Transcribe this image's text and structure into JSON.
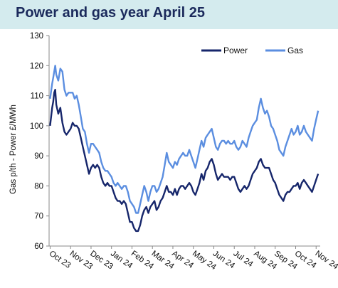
{
  "header": {
    "title": "Power and gas year April 25",
    "background_color": "#d4ebee",
    "title_color": "#1b2a5c"
  },
  "chart_data": {
    "type": "line",
    "title": "Power and gas year April 25",
    "xlabel": "",
    "ylabel": "Gas p/th - Power £/MWh",
    "ylim": [
      60,
      130
    ],
    "yticks": [
      60,
      70,
      80,
      90,
      100,
      110,
      120,
      130
    ],
    "x_tick_labels": [
      "Oct 23",
      "Nov 23",
      "Dec 23",
      "Jan 24",
      "Feb 24",
      "Mar 24",
      "Apr 24",
      "May 24",
      "Jun 24",
      "Jul 24",
      "Aug 24",
      "Sep 24",
      "Oct 24",
      "Nov 24"
    ],
    "grid": false,
    "legend_position": "top-right",
    "series": [
      {
        "name": "Power",
        "color": "#16266b",
        "values": [
          [
            0.0,
            100
          ],
          [
            0.1,
            106
          ],
          [
            0.15,
            108
          ],
          [
            0.2,
            111
          ],
          [
            0.25,
            112
          ],
          [
            0.3,
            107
          ],
          [
            0.4,
            104
          ],
          [
            0.5,
            106
          ],
          [
            0.6,
            101
          ],
          [
            0.7,
            98
          ],
          [
            0.8,
            97
          ],
          [
            0.9,
            98
          ],
          [
            1.0,
            99
          ],
          [
            1.1,
            101
          ],
          [
            1.2,
            100
          ],
          [
            1.3,
            100
          ],
          [
            1.4,
            99
          ],
          [
            1.5,
            96
          ],
          [
            1.6,
            93
          ],
          [
            1.7,
            90
          ],
          [
            1.8,
            87
          ],
          [
            1.9,
            84
          ],
          [
            2.0,
            86
          ],
          [
            2.1,
            87
          ],
          [
            2.2,
            86
          ],
          [
            2.3,
            87
          ],
          [
            2.4,
            86
          ],
          [
            2.5,
            83
          ],
          [
            2.6,
            81
          ],
          [
            2.7,
            80
          ],
          [
            2.8,
            81
          ],
          [
            2.9,
            80
          ],
          [
            3.0,
            80
          ],
          [
            3.1,
            78
          ],
          [
            3.2,
            76
          ],
          [
            3.3,
            75
          ],
          [
            3.4,
            75
          ],
          [
            3.5,
            74
          ],
          [
            3.6,
            75
          ],
          [
            3.7,
            74
          ],
          [
            3.8,
            71
          ],
          [
            3.9,
            68
          ],
          [
            4.0,
            68
          ],
          [
            4.1,
            66
          ],
          [
            4.2,
            65
          ],
          [
            4.3,
            65
          ],
          [
            4.4,
            67
          ],
          [
            4.5,
            70
          ],
          [
            4.6,
            72
          ],
          [
            4.7,
            73
          ],
          [
            4.8,
            71
          ],
          [
            4.9,
            73
          ],
          [
            5.0,
            74
          ],
          [
            5.1,
            75
          ],
          [
            5.2,
            72
          ],
          [
            5.3,
            73
          ],
          [
            5.4,
            75
          ],
          [
            5.5,
            76
          ],
          [
            5.6,
            78
          ],
          [
            5.7,
            80
          ],
          [
            5.8,
            78
          ],
          [
            5.9,
            78
          ],
          [
            6.0,
            77
          ],
          [
            6.1,
            79
          ],
          [
            6.2,
            77
          ],
          [
            6.3,
            79
          ],
          [
            6.4,
            80
          ],
          [
            6.5,
            80
          ],
          [
            6.6,
            79
          ],
          [
            6.7,
            80
          ],
          [
            6.8,
            81
          ],
          [
            6.9,
            80
          ],
          [
            7.0,
            78
          ],
          [
            7.1,
            77
          ],
          [
            7.2,
            79
          ],
          [
            7.3,
            81
          ],
          [
            7.4,
            84
          ],
          [
            7.5,
            82
          ],
          [
            7.6,
            85
          ],
          [
            7.7,
            86
          ],
          [
            7.8,
            88
          ],
          [
            7.9,
            89
          ],
          [
            8.0,
            87
          ],
          [
            8.1,
            84
          ],
          [
            8.2,
            82
          ],
          [
            8.3,
            83
          ],
          [
            8.4,
            84
          ],
          [
            8.5,
            83
          ],
          [
            8.6,
            83
          ],
          [
            8.7,
            83
          ],
          [
            8.8,
            82
          ],
          [
            8.9,
            83
          ],
          [
            9.0,
            83
          ],
          [
            9.1,
            81
          ],
          [
            9.2,
            79
          ],
          [
            9.3,
            78
          ],
          [
            9.4,
            79
          ],
          [
            9.5,
            80
          ],
          [
            9.6,
            79
          ],
          [
            9.7,
            80
          ],
          [
            9.8,
            82
          ],
          [
            9.9,
            84
          ],
          [
            10.0,
            85
          ],
          [
            10.1,
            86
          ],
          [
            10.2,
            88
          ],
          [
            10.3,
            89
          ],
          [
            10.4,
            87
          ],
          [
            10.5,
            86
          ],
          [
            10.6,
            86
          ],
          [
            10.7,
            86
          ],
          [
            10.8,
            84
          ],
          [
            10.9,
            82
          ],
          [
            11.0,
            81
          ],
          [
            11.1,
            79
          ],
          [
            11.2,
            77
          ],
          [
            11.3,
            76
          ],
          [
            11.4,
            75
          ],
          [
            11.5,
            77
          ],
          [
            11.6,
            78
          ],
          [
            11.7,
            78
          ],
          [
            11.8,
            79
          ],
          [
            11.9,
            80
          ],
          [
            12.0,
            80
          ],
          [
            12.1,
            81
          ],
          [
            12.2,
            79
          ],
          [
            12.3,
            81
          ],
          [
            12.4,
            82
          ],
          [
            12.5,
            81
          ],
          [
            12.6,
            80
          ],
          [
            12.7,
            79
          ],
          [
            12.8,
            78
          ],
          [
            12.9,
            80
          ],
          [
            13.0,
            82
          ],
          [
            13.1,
            84
          ]
        ]
      },
      {
        "name": "Gas",
        "color": "#5b8ee0",
        "values": [
          [
            0.0,
            109
          ],
          [
            0.1,
            114
          ],
          [
            0.15,
            116
          ],
          [
            0.2,
            118
          ],
          [
            0.25,
            120
          ],
          [
            0.3,
            117
          ],
          [
            0.4,
            115
          ],
          [
            0.5,
            119
          ],
          [
            0.6,
            118
          ],
          [
            0.7,
            112
          ],
          [
            0.8,
            110
          ],
          [
            0.9,
            111
          ],
          [
            1.0,
            111
          ],
          [
            1.1,
            111
          ],
          [
            1.2,
            109
          ],
          [
            1.3,
            110
          ],
          [
            1.4,
            107
          ],
          [
            1.5,
            103
          ],
          [
            1.6,
            99
          ],
          [
            1.7,
            98
          ],
          [
            1.8,
            94
          ],
          [
            1.9,
            91
          ],
          [
            2.0,
            94
          ],
          [
            2.1,
            94
          ],
          [
            2.2,
            93
          ],
          [
            2.3,
            92
          ],
          [
            2.4,
            91
          ],
          [
            2.5,
            88
          ],
          [
            2.6,
            86
          ],
          [
            2.7,
            85
          ],
          [
            2.8,
            85
          ],
          [
            2.9,
            84
          ],
          [
            3.0,
            83
          ],
          [
            3.1,
            81
          ],
          [
            3.2,
            80
          ],
          [
            3.3,
            81
          ],
          [
            3.4,
            80
          ],
          [
            3.5,
            79
          ],
          [
            3.6,
            80
          ],
          [
            3.7,
            80
          ],
          [
            3.8,
            78
          ],
          [
            3.9,
            75
          ],
          [
            4.0,
            74
          ],
          [
            4.1,
            73
          ],
          [
            4.2,
            71
          ],
          [
            4.3,
            71
          ],
          [
            4.4,
            74
          ],
          [
            4.5,
            77
          ],
          [
            4.6,
            80
          ],
          [
            4.7,
            78
          ],
          [
            4.8,
            75
          ],
          [
            4.9,
            78
          ],
          [
            5.0,
            80
          ],
          [
            5.1,
            80
          ],
          [
            5.2,
            78
          ],
          [
            5.3,
            79
          ],
          [
            5.4,
            81
          ],
          [
            5.5,
            83
          ],
          [
            5.6,
            87
          ],
          [
            5.7,
            91
          ],
          [
            5.8,
            88
          ],
          [
            5.9,
            87
          ],
          [
            6.0,
            86
          ],
          [
            6.1,
            88
          ],
          [
            6.2,
            87
          ],
          [
            6.3,
            89
          ],
          [
            6.4,
            90
          ],
          [
            6.5,
            91
          ],
          [
            6.6,
            90
          ],
          [
            6.7,
            90
          ],
          [
            6.8,
            92
          ],
          [
            6.9,
            90
          ],
          [
            7.0,
            88
          ],
          [
            7.1,
            86
          ],
          [
            7.2,
            89
          ],
          [
            7.3,
            92
          ],
          [
            7.4,
            95
          ],
          [
            7.5,
            93
          ],
          [
            7.6,
            96
          ],
          [
            7.7,
            97
          ],
          [
            7.8,
            98
          ],
          [
            7.9,
            99
          ],
          [
            8.0,
            96
          ],
          [
            8.1,
            93
          ],
          [
            8.2,
            92
          ],
          [
            8.3,
            94
          ],
          [
            8.4,
            95
          ],
          [
            8.5,
            95
          ],
          [
            8.6,
            94
          ],
          [
            8.7,
            95
          ],
          [
            8.8,
            94
          ],
          [
            8.9,
            94
          ],
          [
            9.0,
            95
          ],
          [
            9.1,
            93
          ],
          [
            9.2,
            92
          ],
          [
            9.3,
            93
          ],
          [
            9.4,
            95
          ],
          [
            9.5,
            94
          ],
          [
            9.6,
            93
          ],
          [
            9.7,
            96
          ],
          [
            9.8,
            98
          ],
          [
            9.9,
            100
          ],
          [
            10.0,
            101
          ],
          [
            10.1,
            102
          ],
          [
            10.2,
            106
          ],
          [
            10.3,
            109
          ],
          [
            10.4,
            106
          ],
          [
            10.5,
            104
          ],
          [
            10.6,
            105
          ],
          [
            10.7,
            103
          ],
          [
            10.8,
            100
          ],
          [
            10.9,
            99
          ],
          [
            11.0,
            97
          ],
          [
            11.1,
            95
          ],
          [
            11.2,
            92
          ],
          [
            11.3,
            91
          ],
          [
            11.4,
            90
          ],
          [
            11.5,
            93
          ],
          [
            11.6,
            95
          ],
          [
            11.7,
            97
          ],
          [
            11.8,
            99
          ],
          [
            11.9,
            97
          ],
          [
            12.0,
            98
          ],
          [
            12.1,
            100
          ],
          [
            12.2,
            97
          ],
          [
            12.3,
            98
          ],
          [
            12.4,
            100
          ],
          [
            12.5,
            98
          ],
          [
            12.6,
            97
          ],
          [
            12.7,
            96
          ],
          [
            12.8,
            95
          ],
          [
            12.9,
            99
          ],
          [
            13.0,
            102
          ],
          [
            13.1,
            105
          ]
        ]
      }
    ]
  }
}
